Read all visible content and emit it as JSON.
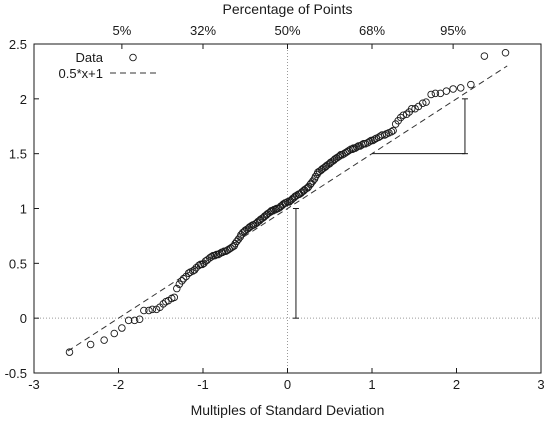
{
  "chart_data": {
    "type": "scatter",
    "title": "Percentage of Points",
    "xlabel": "Multiples of Standard Deviation",
    "ylabel": "",
    "xlim": [
      -3,
      3
    ],
    "ylim": [
      -0.5,
      2.5
    ],
    "x_ticks": [
      {
        "value": -3,
        "label": "-3"
      },
      {
        "value": -2,
        "label": "-2"
      },
      {
        "value": -1,
        "label": "-1"
      },
      {
        "value": 0,
        "label": "0"
      },
      {
        "value": 1,
        "label": "1"
      },
      {
        "value": 2,
        "label": "2"
      },
      {
        "value": 3,
        "label": "3"
      }
    ],
    "y_ticks": [
      {
        "value": -0.5,
        "label": "-0.5"
      },
      {
        "value": 0,
        "label": "0"
      },
      {
        "value": 0.5,
        "label": "0.5"
      },
      {
        "value": 1,
        "label": "1"
      },
      {
        "value": 1.5,
        "label": "1.5"
      },
      {
        "value": 2,
        "label": "2"
      },
      {
        "value": 2.5,
        "label": "2.5"
      }
    ],
    "top_ticks": [
      {
        "value": -1.96,
        "label": "5%"
      },
      {
        "value": -1.0,
        "label": "32%"
      },
      {
        "value": 0.0,
        "label": "50%"
      },
      {
        "value": 1.0,
        "label": "68%"
      },
      {
        "value": 1.96,
        "label": "95%"
      }
    ],
    "reference_lines": [
      {
        "axis": "x",
        "value": 0
      },
      {
        "axis": "y",
        "value": 0
      }
    ],
    "legend": {
      "position": "top-left"
    },
    "series": [
      {
        "name": "Data",
        "style": "open-circle",
        "color": "#1a1a1a",
        "points": [
          [
            -2.58,
            -0.31
          ],
          [
            -2.33,
            -0.24
          ],
          [
            -2.17,
            -0.2
          ],
          [
            -2.05,
            -0.14
          ],
          [
            -1.96,
            -0.09
          ],
          [
            -1.88,
            -0.02
          ],
          [
            -1.81,
            -0.02
          ],
          [
            -1.75,
            -0.01
          ],
          [
            -1.7,
            0.07
          ],
          [
            -1.64,
            0.07
          ],
          [
            -1.6,
            0.08
          ],
          [
            -1.55,
            0.08
          ],
          [
            -1.51,
            0.1
          ],
          [
            -1.47,
            0.13
          ],
          [
            -1.44,
            0.15
          ],
          [
            -1.41,
            0.16
          ],
          [
            -1.37,
            0.18
          ],
          [
            -1.34,
            0.19
          ],
          [
            -1.31,
            0.27
          ],
          [
            -1.28,
            0.31
          ],
          [
            -1.25,
            0.34
          ],
          [
            -1.23,
            0.36
          ],
          [
            -1.2,
            0.38
          ],
          [
            -1.17,
            0.41
          ],
          [
            -1.15,
            0.42
          ],
          [
            -1.12,
            0.43
          ],
          [
            -1.1,
            0.44
          ],
          [
            -1.08,
            0.46
          ],
          [
            -1.05,
            0.48
          ],
          [
            -1.03,
            0.49
          ],
          [
            -1.01,
            0.49
          ],
          [
            -0.99,
            0.5
          ],
          [
            -0.97,
            0.52
          ],
          [
            -0.95,
            0.53
          ],
          [
            -0.92,
            0.55
          ],
          [
            -0.9,
            0.56
          ],
          [
            -0.88,
            0.57
          ],
          [
            -0.86,
            0.57
          ],
          [
            -0.84,
            0.58
          ],
          [
            -0.82,
            0.58
          ],
          [
            -0.8,
            0.59
          ],
          [
            -0.78,
            0.6
          ],
          [
            -0.77,
            0.6
          ],
          [
            -0.75,
            0.61
          ],
          [
            -0.73,
            0.61
          ],
          [
            -0.71,
            0.62
          ],
          [
            -0.69,
            0.63
          ],
          [
            -0.67,
            0.64
          ],
          [
            -0.65,
            0.65
          ],
          [
            -0.63,
            0.66
          ],
          [
            -0.62,
            0.68
          ],
          [
            -0.6,
            0.7
          ],
          [
            -0.58,
            0.72
          ],
          [
            -0.56,
            0.74
          ],
          [
            -0.55,
            0.76
          ],
          [
            -0.53,
            0.78
          ],
          [
            -0.51,
            0.79
          ],
          [
            -0.5,
            0.8
          ],
          [
            -0.48,
            0.81
          ],
          [
            -0.46,
            0.82
          ],
          [
            -0.45,
            0.83
          ],
          [
            -0.43,
            0.84
          ],
          [
            -0.41,
            0.85
          ],
          [
            -0.4,
            0.85
          ],
          [
            -0.38,
            0.86
          ],
          [
            -0.36,
            0.87
          ],
          [
            -0.35,
            0.88
          ],
          [
            -0.33,
            0.89
          ],
          [
            -0.32,
            0.9
          ],
          [
            -0.3,
            0.91
          ],
          [
            -0.28,
            0.92
          ],
          [
            -0.27,
            0.93
          ],
          [
            -0.25,
            0.94
          ],
          [
            -0.24,
            0.95
          ],
          [
            -0.22,
            0.96
          ],
          [
            -0.2,
            0.97
          ],
          [
            -0.19,
            0.98
          ],
          [
            -0.17,
            0.98
          ],
          [
            -0.16,
            0.99
          ],
          [
            -0.14,
            0.99
          ],
          [
            -0.13,
            1.0
          ],
          [
            -0.11,
            1.0
          ],
          [
            -0.09,
            1.01
          ],
          [
            -0.08,
            1.02
          ],
          [
            -0.06,
            1.03
          ],
          [
            -0.05,
            1.04
          ],
          [
            -0.03,
            1.05
          ],
          [
            -0.02,
            1.05
          ],
          [
            0.0,
            1.06
          ],
          [
            0.02,
            1.06
          ],
          [
            0.03,
            1.07
          ],
          [
            0.05,
            1.08
          ],
          [
            0.06,
            1.09
          ],
          [
            0.08,
            1.1
          ],
          [
            0.09,
            1.11
          ],
          [
            0.11,
            1.12
          ],
          [
            0.13,
            1.13
          ],
          [
            0.14,
            1.13
          ],
          [
            0.16,
            1.14
          ],
          [
            0.17,
            1.15
          ],
          [
            0.19,
            1.16
          ],
          [
            0.2,
            1.17
          ],
          [
            0.22,
            1.18
          ],
          [
            0.24,
            1.19
          ],
          [
            0.25,
            1.2
          ],
          [
            0.27,
            1.22
          ],
          [
            0.28,
            1.23
          ],
          [
            0.3,
            1.25
          ],
          [
            0.32,
            1.27
          ],
          [
            0.33,
            1.29
          ],
          [
            0.35,
            1.31
          ],
          [
            0.36,
            1.33
          ],
          [
            0.38,
            1.34
          ],
          [
            0.4,
            1.35
          ],
          [
            0.41,
            1.36
          ],
          [
            0.43,
            1.37
          ],
          [
            0.45,
            1.38
          ],
          [
            0.46,
            1.39
          ],
          [
            0.48,
            1.4
          ],
          [
            0.5,
            1.41
          ],
          [
            0.51,
            1.42
          ],
          [
            0.53,
            1.43
          ],
          [
            0.55,
            1.44
          ],
          [
            0.56,
            1.45
          ],
          [
            0.58,
            1.46
          ],
          [
            0.6,
            1.47
          ],
          [
            0.62,
            1.48
          ],
          [
            0.63,
            1.49
          ],
          [
            0.65,
            1.49
          ],
          [
            0.67,
            1.5
          ],
          [
            0.69,
            1.51
          ],
          [
            0.71,
            1.52
          ],
          [
            0.73,
            1.53
          ],
          [
            0.75,
            1.54
          ],
          [
            0.77,
            1.54
          ],
          [
            0.78,
            1.55
          ],
          [
            0.8,
            1.55
          ],
          [
            0.82,
            1.56
          ],
          [
            0.84,
            1.57
          ],
          [
            0.86,
            1.57
          ],
          [
            0.88,
            1.58
          ],
          [
            0.9,
            1.59
          ],
          [
            0.92,
            1.59
          ],
          [
            0.95,
            1.6
          ],
          [
            0.97,
            1.61
          ],
          [
            0.99,
            1.62
          ],
          [
            1.01,
            1.62
          ],
          [
            1.03,
            1.63
          ],
          [
            1.05,
            1.64
          ],
          [
            1.08,
            1.65
          ],
          [
            1.1,
            1.66
          ],
          [
            1.12,
            1.67
          ],
          [
            1.15,
            1.67
          ],
          [
            1.17,
            1.68
          ],
          [
            1.2,
            1.69
          ],
          [
            1.23,
            1.7
          ],
          [
            1.25,
            1.71
          ],
          [
            1.28,
            1.77
          ],
          [
            1.31,
            1.8
          ],
          [
            1.34,
            1.83
          ],
          [
            1.37,
            1.85
          ],
          [
            1.41,
            1.86
          ],
          [
            1.44,
            1.88
          ],
          [
            1.47,
            1.91
          ],
          [
            1.51,
            1.91
          ],
          [
            1.55,
            1.93
          ],
          [
            1.6,
            1.96
          ],
          [
            1.64,
            1.97
          ],
          [
            1.7,
            2.04
          ],
          [
            1.75,
            2.05
          ],
          [
            1.81,
            2.05
          ],
          [
            1.88,
            2.07
          ],
          [
            1.96,
            2.09
          ],
          [
            2.05,
            2.1
          ],
          [
            2.17,
            2.13
          ],
          [
            2.33,
            2.39
          ],
          [
            2.58,
            2.42
          ]
        ]
      },
      {
        "name": "0.5*x+1",
        "style": "dashed-line",
        "color": "#333333",
        "slope": 0.5,
        "intercept": 1,
        "x_range": [
          -2.6,
          2.6
        ]
      }
    ],
    "annotations": [
      {
        "type": "vertical-bar",
        "x": 0.1,
        "y1": 0,
        "y2": 1
      },
      {
        "type": "horizontal-segment",
        "y": 1.5,
        "x1": 1.0,
        "x2": 2.1
      },
      {
        "type": "vertical-bar",
        "x": 2.1,
        "y1": 1.5,
        "y2": 2.0
      }
    ]
  }
}
